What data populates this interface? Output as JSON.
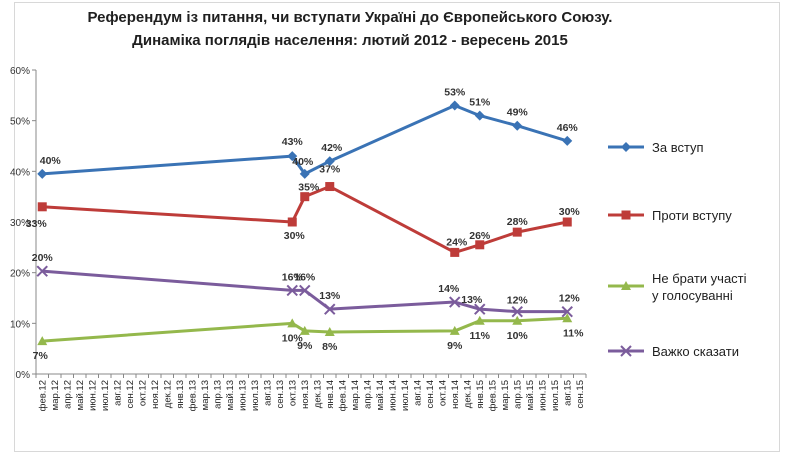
{
  "chart_data": {
    "type": "line",
    "title": "Референдум із питання, чи вступати Україні до Європейського Союзу.",
    "subtitle": "Динаміка поглядів населення: лютий 2012  - вересень 2015",
    "x": [
      "фев.12",
      "мар.12",
      "апр.12",
      "май.12",
      "июн.12",
      "июл.12",
      "авг.12",
      "сен.12",
      "окт.12",
      "ноя.12",
      "дек.12",
      "янв.13",
      "фев.13",
      "мар.13",
      "апр.13",
      "май.13",
      "июн.13",
      "июл.13",
      "авг.13",
      "сен.13",
      "окт.13",
      "ноя.13",
      "дек.13",
      "янв.14",
      "фев.14",
      "мар.14",
      "апр.14",
      "май.14",
      "июн.14",
      "июл.14",
      "авг.14",
      "сен.14",
      "окт.14",
      "ноя.14",
      "дек.14",
      "янв.15",
      "фев.15",
      "мар.15",
      "апр.15",
      "май.15",
      "июн.15",
      "июл.15",
      "авг.15",
      "сен.15"
    ],
    "y_ticks": [
      "0%",
      "10%",
      "20%",
      "30%",
      "40%",
      "50%",
      "60%"
    ],
    "ylim": [
      0,
      60
    ],
    "grid": false,
    "legend_position": "right",
    "series": [
      {
        "name": "За вступ",
        "color": "#3a73b5",
        "marker": "diamond",
        "points": [
          [
            0,
            39.5
          ],
          [
            20,
            43
          ],
          [
            21,
            39.5
          ],
          [
            23,
            42
          ],
          [
            33,
            53
          ],
          [
            35,
            51
          ],
          [
            38,
            49
          ],
          [
            42,
            46
          ]
        ],
        "labels": [
          "40%",
          "43%",
          "40%",
          "42%",
          "53%",
          "51%",
          "49%",
          "46%"
        ]
      },
      {
        "name": "Проти вступу",
        "color": "#be3c39",
        "marker": "square",
        "points": [
          [
            0,
            33
          ],
          [
            20,
            30
          ],
          [
            21,
            35
          ],
          [
            23,
            37
          ],
          [
            33,
            24
          ],
          [
            35,
            25.5
          ],
          [
            38,
            28
          ],
          [
            42,
            30
          ]
        ],
        "labels": [
          "33%",
          "30%",
          "35%",
          "37%",
          "24%",
          "26%",
          "28%",
          "30%"
        ]
      },
      {
        "name": "Не брати участі у голосуванні",
        "color": "#94b84c",
        "marker": "triangle",
        "points": [
          [
            0,
            6.5
          ],
          [
            20,
            10
          ],
          [
            21,
            8.5
          ],
          [
            23,
            8.3
          ],
          [
            33,
            8.5
          ],
          [
            35,
            10.5
          ],
          [
            38,
            10.5
          ],
          [
            42,
            11
          ]
        ],
        "labels": [
          "7%",
          "10%",
          "9%",
          "8%",
          "9%",
          "11%",
          "10%",
          "11%"
        ]
      },
      {
        "name": "Важко сказати",
        "color": "#7b5c9c",
        "marker": "x",
        "points": [
          [
            0,
            20.3
          ],
          [
            20,
            16.5
          ],
          [
            21,
            16.5
          ],
          [
            23,
            12.8
          ],
          [
            33,
            14.2
          ],
          [
            35,
            12.8
          ],
          [
            38,
            12.3
          ],
          [
            42,
            12.3
          ]
        ],
        "labels": [
          "20%",
          "16%",
          "16%",
          "13%",
          "14%",
          "13%",
          "12%",
          "12%"
        ]
      }
    ]
  },
  "legend": [
    {
      "label": "За вступ"
    },
    {
      "label": "Проти вступу"
    },
    {
      "label": "Не брати участі\nу голосуванні"
    },
    {
      "label": "Важко сказати"
    }
  ]
}
